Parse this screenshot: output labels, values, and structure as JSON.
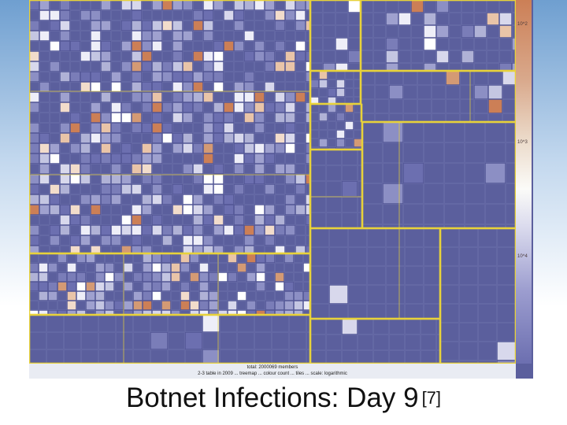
{
  "slide": {
    "title": "Botnet Infections: Day 9",
    "reference": "[7]"
  },
  "figure": {
    "footer_line1": "total: 2000069 members",
    "footer_line2": "2-3 table in 2009 ... treemap ... colour count ... tiles ... scale: logarithmic",
    "colorbar_labels": [
      "10^2",
      "10^3",
      "10^4"
    ]
  },
  "colors": {
    "tile_base": "#5b5f9d",
    "region_border": "#e8d23a",
    "high_infection": "#cc7f56",
    "no_infection": "#ffffff",
    "low_infection": "#6c6fb0"
  }
}
